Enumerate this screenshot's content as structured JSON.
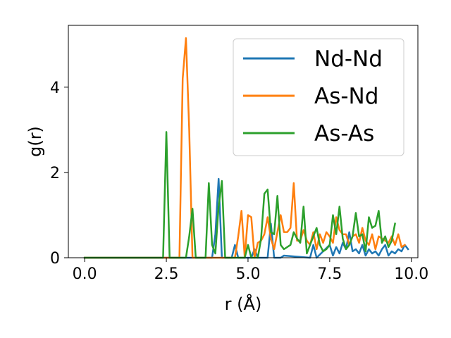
{
  "chart_data": {
    "type": "line",
    "xlabel": "r (Å)",
    "ylabel": "g(r)",
    "xlim": [
      -0.5,
      10.2
    ],
    "ylim": [
      0,
      5.45
    ],
    "xticks": [
      0.0,
      2.5,
      5.0,
      7.5,
      10.0
    ],
    "xtick_labels": [
      "0.0",
      "2.5",
      "5.0",
      "7.5",
      "10.0"
    ],
    "yticks": [
      0,
      2,
      4
    ],
    "ytick_labels": [
      "0",
      "2",
      "4"
    ],
    "grid": false,
    "legend_position": "upper right",
    "series": [
      {
        "name": "Nd-Nd",
        "color": "#1f77b4",
        "points": [
          [
            0.0,
            0
          ],
          [
            2.5,
            0
          ],
          [
            3.9,
            0
          ],
          [
            4.0,
            0.55
          ],
          [
            4.1,
            1.85
          ],
          [
            4.2,
            0
          ],
          [
            4.5,
            0
          ],
          [
            4.6,
            0.3
          ],
          [
            4.7,
            0
          ],
          [
            5.1,
            0
          ],
          [
            5.2,
            0.2
          ],
          [
            5.3,
            0
          ],
          [
            5.6,
            0
          ],
          [
            5.7,
            0.8
          ],
          [
            5.8,
            0
          ],
          [
            6.0,
            0
          ],
          [
            6.1,
            0.05
          ],
          [
            6.9,
            0
          ],
          [
            7.0,
            0.3
          ],
          [
            7.1,
            0
          ],
          [
            7.5,
            0.3
          ],
          [
            7.6,
            0.05
          ],
          [
            7.7,
            0.25
          ],
          [
            7.8,
            0.1
          ],
          [
            7.9,
            0.35
          ],
          [
            8.0,
            0.2
          ],
          [
            8.1,
            0.6
          ],
          [
            8.2,
            0.15
          ],
          [
            8.3,
            0.2
          ],
          [
            8.4,
            0.1
          ],
          [
            8.5,
            0.3
          ],
          [
            8.6,
            0.05
          ],
          [
            8.7,
            0.2
          ],
          [
            8.8,
            0.1
          ],
          [
            8.9,
            0.15
          ],
          [
            9.0,
            0.05
          ],
          [
            9.1,
            0.2
          ],
          [
            9.2,
            0.3
          ],
          [
            9.3,
            0.05
          ],
          [
            9.4,
            0.15
          ],
          [
            9.5,
            0.1
          ],
          [
            9.6,
            0.2
          ],
          [
            9.7,
            0.15
          ],
          [
            9.8,
            0.3
          ],
          [
            9.9,
            0.2
          ]
        ]
      },
      {
        "name": "As-Nd",
        "color": "#ff7f0e",
        "points": [
          [
            0.0,
            0
          ],
          [
            2.9,
            0
          ],
          [
            3.0,
            4.2
          ],
          [
            3.1,
            5.15
          ],
          [
            3.2,
            3.0
          ],
          [
            3.3,
            0
          ],
          [
            4.6,
            0
          ],
          [
            4.7,
            0.5
          ],
          [
            4.8,
            1.1
          ],
          [
            4.9,
            0
          ],
          [
            5.0,
            1.0
          ],
          [
            5.1,
            0.95
          ],
          [
            5.2,
            0
          ],
          [
            5.3,
            0.35
          ],
          [
            5.4,
            0.4
          ],
          [
            5.5,
            0.55
          ],
          [
            5.6,
            0.95
          ],
          [
            5.7,
            0.45
          ],
          [
            5.8,
            0.2
          ],
          [
            5.9,
            0.6
          ],
          [
            6.0,
            1.0
          ],
          [
            6.1,
            0.6
          ],
          [
            6.2,
            0.6
          ],
          [
            6.3,
            0.7
          ],
          [
            6.4,
            1.75
          ],
          [
            6.5,
            0.4
          ],
          [
            6.6,
            0.4
          ],
          [
            6.7,
            0.65
          ],
          [
            6.8,
            0.4
          ],
          [
            6.9,
            0.3
          ],
          [
            7.0,
            0.6
          ],
          [
            7.1,
            0.2
          ],
          [
            7.2,
            0.55
          ],
          [
            7.3,
            0.35
          ],
          [
            7.4,
            0.6
          ],
          [
            7.5,
            0.5
          ],
          [
            7.6,
            0.35
          ],
          [
            7.7,
            0.95
          ],
          [
            7.8,
            0.65
          ],
          [
            7.9,
            0.55
          ],
          [
            8.0,
            0.55
          ],
          [
            8.1,
            0.3
          ],
          [
            8.2,
            0.5
          ],
          [
            8.3,
            0.55
          ],
          [
            8.4,
            0.35
          ],
          [
            8.5,
            0.7
          ],
          [
            8.6,
            0.4
          ],
          [
            8.7,
            0.3
          ],
          [
            8.8,
            0.55
          ],
          [
            8.9,
            0.2
          ],
          [
            9.0,
            0.5
          ],
          [
            9.1,
            0.45
          ],
          [
            9.2,
            0.4
          ],
          [
            9.3,
            0.35
          ],
          [
            9.4,
            0.5
          ],
          [
            9.5,
            0.3
          ],
          [
            9.6,
            0.55
          ],
          [
            9.7,
            0.25
          ],
          [
            9.8,
            0.3
          ]
        ]
      },
      {
        "name": "As-As",
        "color": "#2ca02c",
        "points": [
          [
            0.0,
            0
          ],
          [
            2.4,
            0
          ],
          [
            2.5,
            2.95
          ],
          [
            2.6,
            0
          ],
          [
            3.1,
            0
          ],
          [
            3.2,
            0.5
          ],
          [
            3.3,
            1.15
          ],
          [
            3.4,
            0
          ],
          [
            3.7,
            0
          ],
          [
            3.8,
            1.75
          ],
          [
            3.9,
            0.3
          ],
          [
            4.0,
            0.1
          ],
          [
            4.1,
            1.2
          ],
          [
            4.2,
            1.8
          ],
          [
            4.3,
            0
          ],
          [
            4.9,
            0
          ],
          [
            5.0,
            0.3
          ],
          [
            5.1,
            0
          ],
          [
            5.3,
            0
          ],
          [
            5.4,
            0.45
          ],
          [
            5.5,
            1.5
          ],
          [
            5.6,
            1.6
          ],
          [
            5.7,
            0.6
          ],
          [
            5.8,
            0.55
          ],
          [
            5.9,
            1.45
          ],
          [
            6.0,
            0.3
          ],
          [
            6.1,
            0.2
          ],
          [
            6.2,
            0.25
          ],
          [
            6.3,
            0.3
          ],
          [
            6.4,
            0.6
          ],
          [
            6.5,
            0.45
          ],
          [
            6.6,
            0.35
          ],
          [
            6.7,
            1.2
          ],
          [
            6.8,
            0.1
          ],
          [
            6.9,
            0.3
          ],
          [
            7.0,
            0.5
          ],
          [
            7.1,
            0.7
          ],
          [
            7.2,
            0.3
          ],
          [
            7.3,
            0.15
          ],
          [
            7.4,
            0.2
          ],
          [
            7.5,
            0.3
          ],
          [
            7.6,
            1.0
          ],
          [
            7.7,
            0.55
          ],
          [
            7.8,
            1.2
          ],
          [
            7.9,
            0.45
          ],
          [
            8.0,
            0.2
          ],
          [
            8.1,
            0.3
          ],
          [
            8.2,
            0.5
          ],
          [
            8.3,
            1.05
          ],
          [
            8.4,
            0.5
          ],
          [
            8.5,
            0.55
          ],
          [
            8.6,
            0.15
          ],
          [
            8.7,
            0.95
          ],
          [
            8.8,
            0.7
          ],
          [
            8.9,
            0.75
          ],
          [
            9.0,
            1.1
          ],
          [
            9.1,
            0.35
          ],
          [
            9.2,
            0.5
          ],
          [
            9.3,
            0.25
          ],
          [
            9.4,
            0.4
          ],
          [
            9.5,
            0.8
          ]
        ]
      }
    ]
  }
}
